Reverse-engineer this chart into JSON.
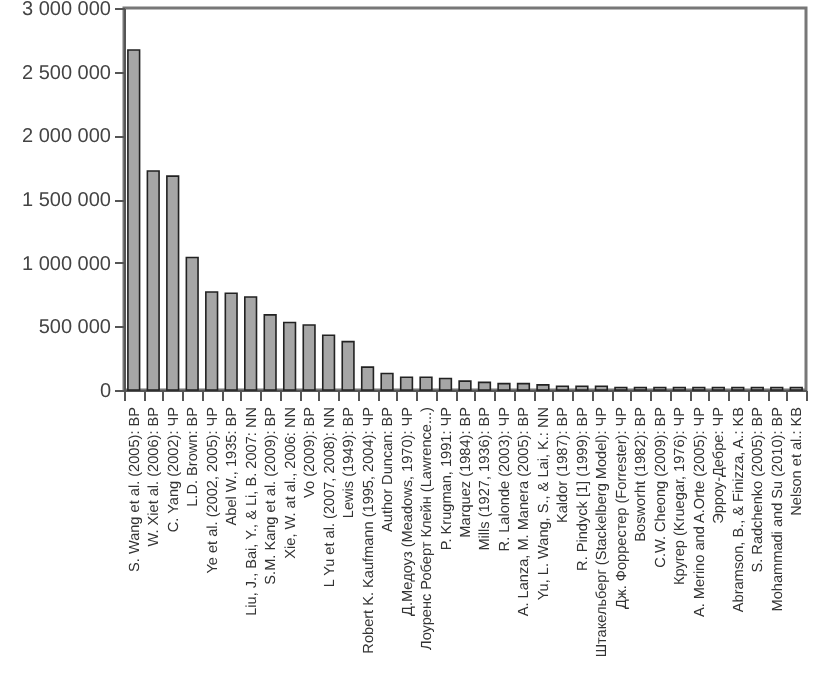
{
  "chart_data": {
    "type": "bar",
    "categories": [
      "S. Wang et al. (2005): BP",
      "W. Xiet al. (2006): BP",
      "C. Yang (2002): ЧР",
      "L.D. Brown: BP",
      "Ye et al. (2002, 2005): ЧР",
      "Abel W., 1935: BP",
      "Liu, J., Bai, Y., & Li, B. 2007: NN",
      "S.M. Kang et al. (2009): BP",
      "Xie, W. at al., 2006: NN",
      "Vo (2009): BP",
      "L Yu et al. (2007, 2008): NN",
      "Lewis (1949): BP",
      "Robert K. Kaufmann (1995, 2004): ЧР",
      "Author Duncan: BP",
      "Д.Медоуз (Meadows, 1970): ЧР",
      "Лоуренс Роберт Клейн (Lawrence...)",
      "P. Krugman, 1991: ЧР",
      "Marquez (1984): BP",
      "Mills (1927, 1936): BP",
      "R. Lalonde (2003): ЧР",
      "A. Lanza, M. Manera (2005): BP",
      "Yu, L. Wang, S., & Lai, K.: NN",
      "Kaldor (1987): BP",
      "R. Pindyck [1] (1999): BP",
      "Штакельберг (Stackelberg Model): ЧР",
      "Дж. Форрестер (Forrester): ЧР",
      "Bosworht (1982): BP",
      "C.W. Cheong (2009): BP",
      "Кругер (Kruegar, 1976): ЧР",
      "A. Merino and A.Orte (2005): ЧР",
      "Эрроу-Дебре: ЧР",
      "Abramson, B., & Finizza, A.: KB",
      "S. Radchenko (2005): BP",
      "Mohammadi and Su (2010): BP",
      "Nelson et al.: KB"
    ],
    "values": [
      2670000,
      1720000,
      1680000,
      1040000,
      770000,
      760000,
      730000,
      590000,
      530000,
      510000,
      430000,
      380000,
      180000,
      130000,
      100000,
      100000,
      90000,
      70000,
      60000,
      50000,
      50000,
      40000,
      30000,
      30000,
      30000,
      20000,
      20000,
      20000,
      20000,
      20000,
      20000,
      20000,
      20000,
      20000,
      20000
    ],
    "color": "#a6a6a6",
    "ylim": [
      0,
      3000000
    ],
    "yticks": [
      {
        "value": 0,
        "label": "0"
      },
      {
        "value": 500000,
        "label": "500 000"
      },
      {
        "value": 1000000,
        "label": "1 000 000"
      },
      {
        "value": 1500000,
        "label": "1 500 000"
      },
      {
        "value": 2000000,
        "label": "2 000 000"
      },
      {
        "value": 2500000,
        "label": "2 500 000"
      },
      {
        "value": 3000000,
        "label": "3 000 000"
      }
    ],
    "grid": false
  }
}
